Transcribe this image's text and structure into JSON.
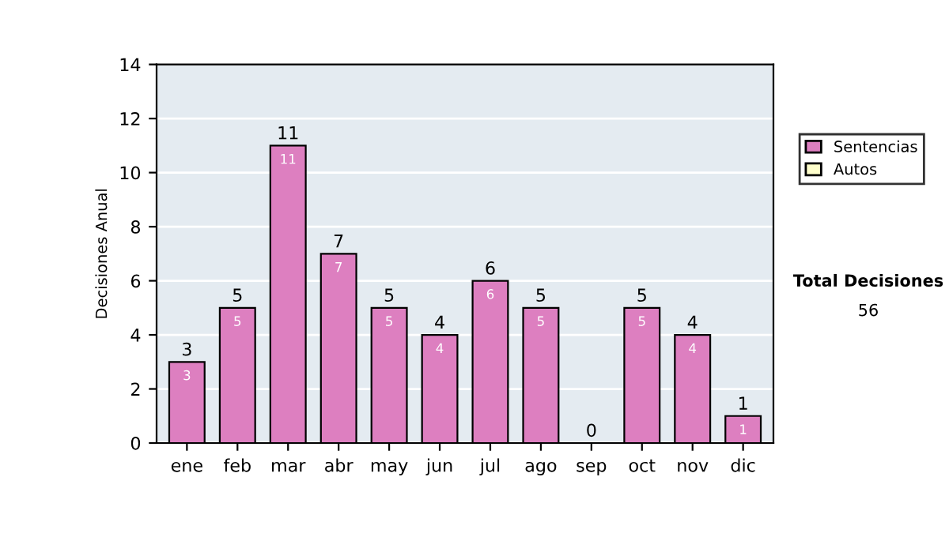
{
  "chart_data": {
    "type": "bar",
    "ylabel": "Decisiones Anual",
    "categories": [
      "ene",
      "feb",
      "mar",
      "abr",
      "may",
      "jun",
      "jul",
      "ago",
      "sep",
      "oct",
      "nov",
      "dic"
    ],
    "series": [
      {
        "name": "Sentencias",
        "color": "#dd7fc0",
        "values": [
          3,
          5,
          11,
          7,
          5,
          4,
          6,
          5,
          0,
          5,
          4,
          1
        ],
        "value_labels": [
          "3",
          "5",
          "11",
          "7",
          "5",
          "4",
          "6",
          "5",
          null,
          "5",
          "4",
          "1"
        ]
      },
      {
        "name": "Autos",
        "color": "#ffffcc",
        "values": [
          null,
          null,
          null,
          null,
          null,
          null,
          null,
          null,
          null,
          null,
          null,
          null
        ]
      }
    ],
    "stacked": true,
    "totals": [
      "3",
      "5",
      "11",
      "7",
      "5",
      "4",
      "6",
      "5",
      "0",
      "5",
      "4",
      "1"
    ],
    "ylim": [
      0,
      14
    ],
    "yticks": [
      0,
      2,
      4,
      6,
      8,
      10,
      12,
      14
    ],
    "grid": "y",
    "legend": "right",
    "annotations": [
      "Total Decisiones",
      "56"
    ]
  }
}
